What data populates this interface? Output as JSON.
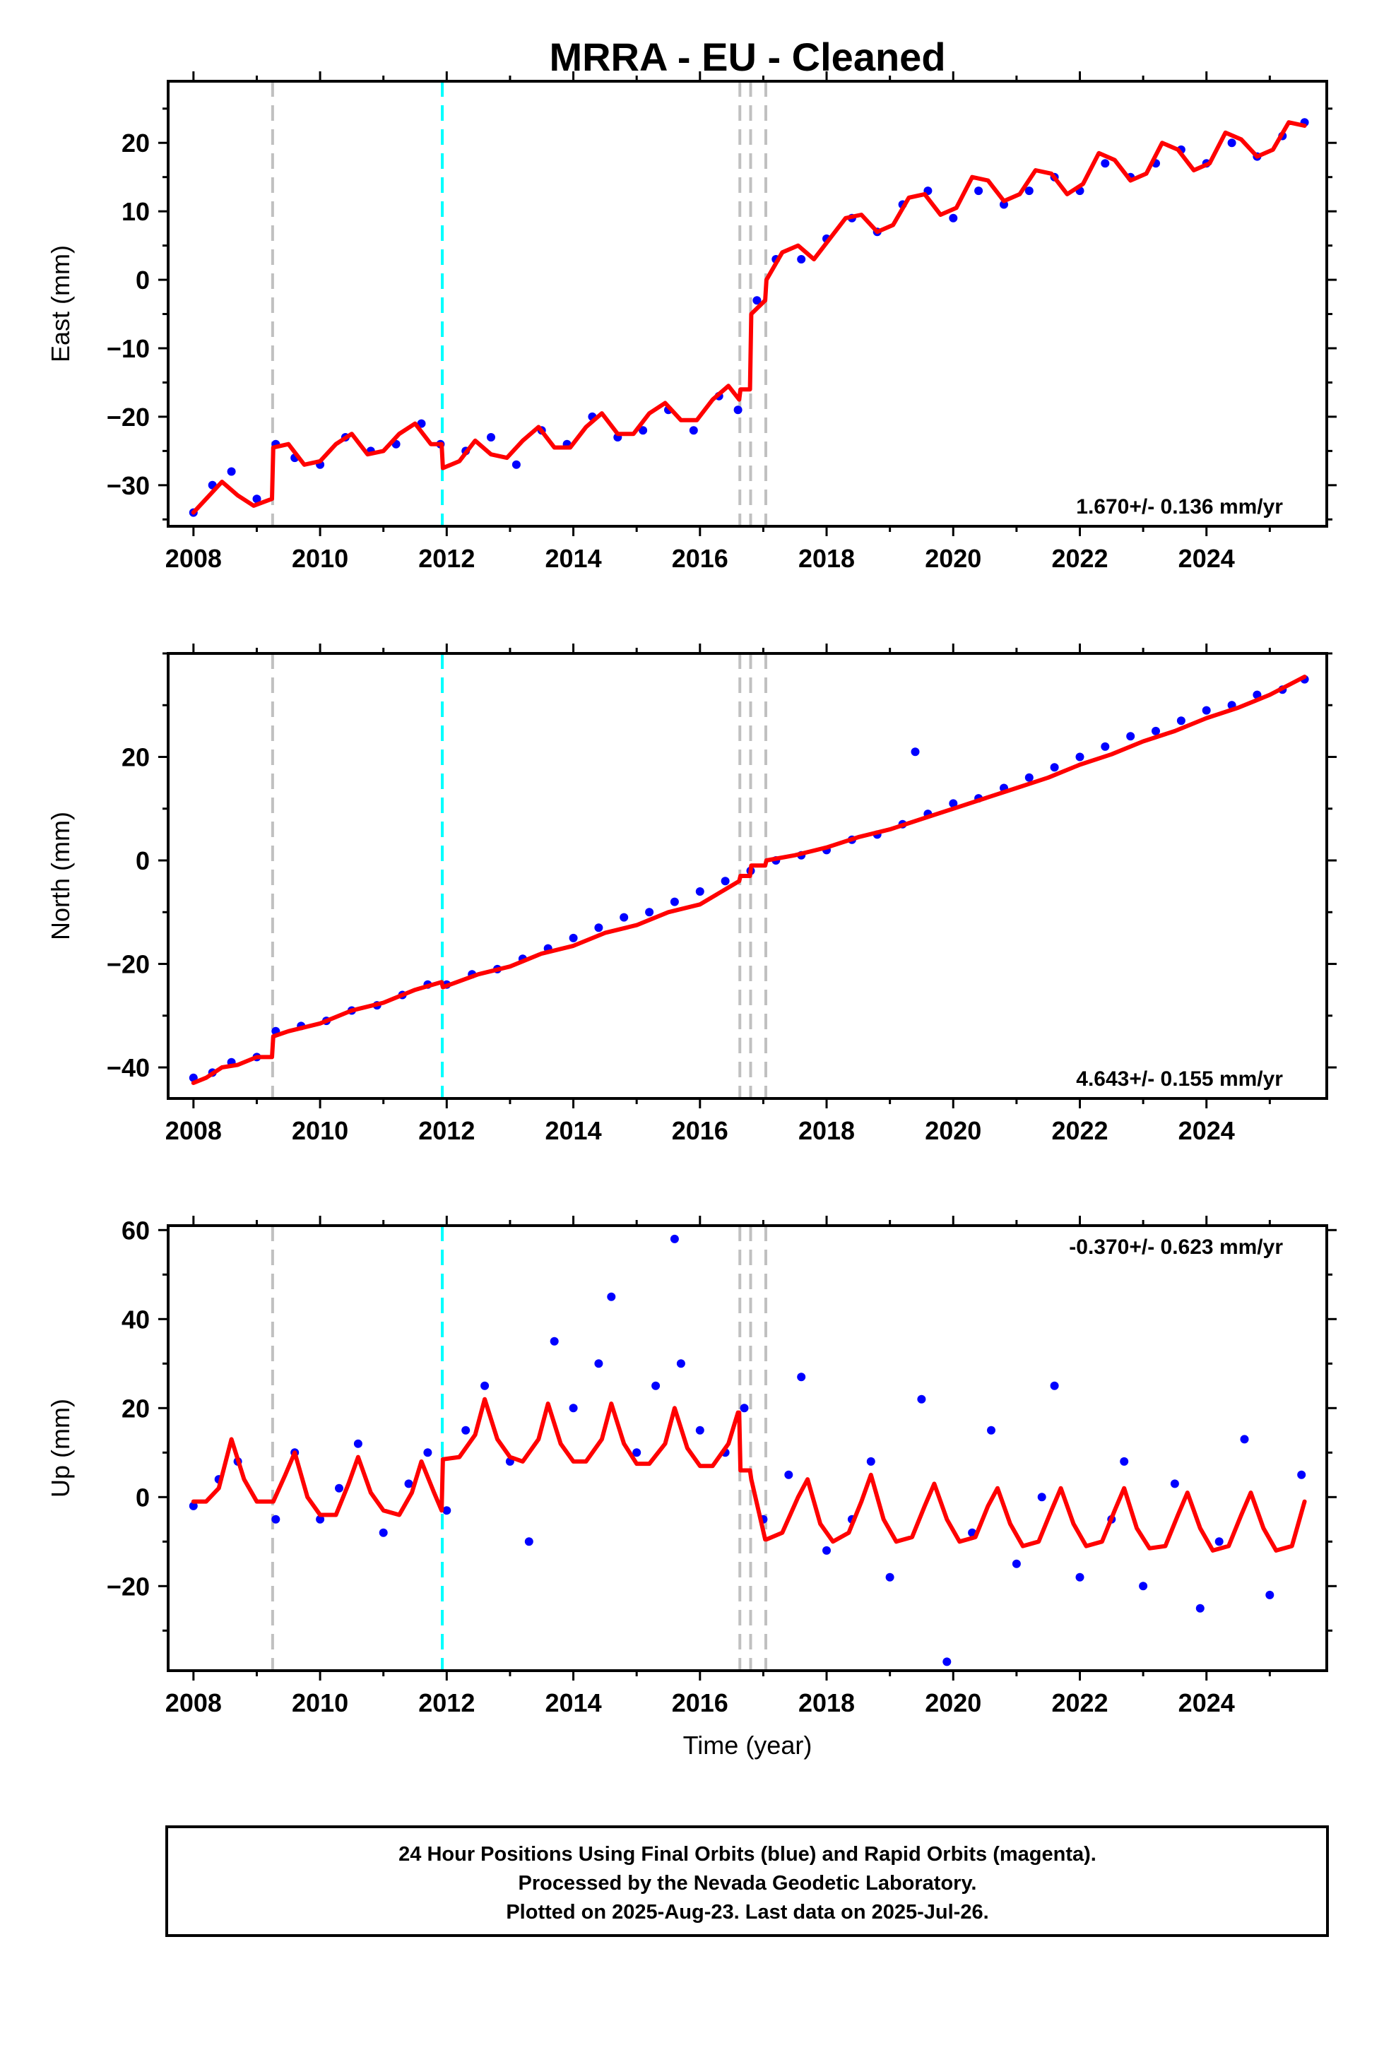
{
  "title": "MRRA  - EU - Cleaned",
  "x_axis_label": "Time (year)",
  "footer": {
    "line1": "24 Hour Positions Using Final Orbits (blue) and Rapid Orbits (magenta).",
    "line2": "Processed by the Nevada Geodetic Laboratory.",
    "line3": "Plotted on 2025-Aug-23. Last data on 2025-Jul-26."
  },
  "colors": {
    "points": "#0000ff",
    "model": "#ff0000",
    "event_gray": "#c0c0c0",
    "event_cyan": "#00ffff"
  },
  "chart_data": [
    {
      "type": "scatter",
      "panel": "east",
      "ylabel": "East (mm)",
      "rate_text": "1.670+/- 0.136 mm/yr",
      "xlim": [
        2007.6,
        2025.9
      ],
      "ylim": [
        -36,
        29
      ],
      "xticks": [
        2008,
        2010,
        2012,
        2014,
        2016,
        2018,
        2020,
        2022,
        2024
      ],
      "yticks": [
        -30,
        -20,
        -10,
        0,
        10,
        20
      ],
      "events": [
        {
          "x": 2009.25,
          "kind": "gray"
        },
        {
          "x": 2011.93,
          "kind": "cyan"
        },
        {
          "x": 2016.63,
          "kind": "gray"
        },
        {
          "x": 2016.8,
          "kind": "gray"
        },
        {
          "x": 2017.04,
          "kind": "gray"
        }
      ],
      "series": [
        {
          "role": "positions",
          "style": "points",
          "x": [
            2008.0,
            2008.3,
            2008.6,
            2009.0,
            2009.3,
            2009.6,
            2010.0,
            2010.4,
            2010.8,
            2011.2,
            2011.6,
            2011.9,
            2012.3,
            2012.7,
            2013.1,
            2013.5,
            2013.9,
            2014.3,
            2014.7,
            2015.1,
            2015.5,
            2015.9,
            2016.3,
            2016.6,
            2016.9,
            2017.2,
            2017.6,
            2018.0,
            2018.4,
            2018.8,
            2019.2,
            2019.6,
            2020.0,
            2020.4,
            2020.8,
            2021.2,
            2021.6,
            2022.0,
            2022.4,
            2022.8,
            2023.2,
            2023.6,
            2024.0,
            2024.4,
            2024.8,
            2025.2,
            2025.55
          ],
          "y": [
            -34,
            -30,
            -28,
            -32,
            -24,
            -26,
            -27,
            -23,
            -25,
            -24,
            -21,
            -24,
            -25,
            -23,
            -27,
            -22,
            -24,
            -20,
            -23,
            -22,
            -19,
            -22,
            -17,
            -19,
            -3,
            3,
            3,
            6,
            9,
            7,
            11,
            13,
            9,
            13,
            11,
            13,
            15,
            13,
            17,
            15,
            17,
            19,
            17,
            20,
            18,
            21,
            23
          ]
        },
        {
          "role": "model",
          "style": "line",
          "x": [
            2008.0,
            2008.2,
            2008.45,
            2008.7,
            2008.95,
            2009.24,
            2009.26,
            2009.5,
            2009.75,
            2010.0,
            2010.25,
            2010.5,
            2010.75,
            2011.0,
            2011.25,
            2011.5,
            2011.75,
            2011.92,
            2011.94,
            2012.2,
            2012.45,
            2012.7,
            2012.95,
            2013.2,
            2013.45,
            2013.7,
            2013.95,
            2014.2,
            2014.45,
            2014.7,
            2014.95,
            2015.2,
            2015.45,
            2015.7,
            2015.95,
            2016.2,
            2016.45,
            2016.62,
            2016.64,
            2016.79,
            2016.81,
            2017.03,
            2017.05,
            2017.3,
            2017.55,
            2017.8,
            2018.05,
            2018.3,
            2018.55,
            2018.8,
            2019.05,
            2019.3,
            2019.55,
            2019.8,
            2020.05,
            2020.3,
            2020.55,
            2020.8,
            2021.05,
            2021.3,
            2021.55,
            2021.8,
            2022.05,
            2022.3,
            2022.55,
            2022.8,
            2023.05,
            2023.3,
            2023.55,
            2023.8,
            2024.05,
            2024.3,
            2024.55,
            2024.8,
            2025.05,
            2025.3,
            2025.55
          ],
          "y": [
            -34,
            -32,
            -29.5,
            -31.5,
            -33,
            -32,
            -24.5,
            -24,
            -27,
            -26.5,
            -24,
            -22.5,
            -25.5,
            -25,
            -22.5,
            -21,
            -24,
            -24,
            -27.5,
            -26.5,
            -23.5,
            -25.5,
            -26,
            -23.5,
            -21.5,
            -24.5,
            -24.5,
            -21.5,
            -19.5,
            -22.5,
            -22.5,
            -19.5,
            -18,
            -20.5,
            -20.5,
            -17.5,
            -15.5,
            -17.5,
            -16,
            -16,
            -5,
            -3,
            0,
            4,
            5,
            3,
            6,
            9,
            9.5,
            7,
            8,
            12,
            12.5,
            9.5,
            10.5,
            15,
            14.5,
            11.5,
            12.5,
            16,
            15.5,
            12.5,
            14,
            18.5,
            17.5,
            14.5,
            15.5,
            20,
            19,
            16,
            17,
            21.5,
            20.5,
            18,
            19,
            23,
            22.5
          ]
        }
      ]
    },
    {
      "type": "scatter",
      "panel": "north",
      "ylabel": "North (mm)",
      "rate_text": "4.643+/- 0.155 mm/yr",
      "xlim": [
        2007.6,
        2025.9
      ],
      "ylim": [
        -46,
        40
      ],
      "xticks": [
        2008,
        2010,
        2012,
        2014,
        2016,
        2018,
        2020,
        2022,
        2024
      ],
      "yticks": [
        -40,
        -20,
        0,
        20
      ],
      "events": [
        {
          "x": 2009.25,
          "kind": "gray"
        },
        {
          "x": 2011.93,
          "kind": "cyan"
        },
        {
          "x": 2016.63,
          "kind": "gray"
        },
        {
          "x": 2016.8,
          "kind": "gray"
        },
        {
          "x": 2017.04,
          "kind": "gray"
        }
      ],
      "series": [
        {
          "role": "positions",
          "style": "points",
          "x": [
            2008.0,
            2008.3,
            2008.6,
            2009.0,
            2009.3,
            2009.7,
            2010.1,
            2010.5,
            2010.9,
            2011.3,
            2011.7,
            2012.0,
            2012.4,
            2012.8,
            2013.2,
            2013.6,
            2014.0,
            2014.4,
            2014.8,
            2015.2,
            2015.6,
            2016.0,
            2016.4,
            2016.8,
            2017.2,
            2017.6,
            2018.0,
            2018.4,
            2018.8,
            2019.2,
            2019.4,
            2019.6,
            2020.0,
            2020.4,
            2020.8,
            2021.2,
            2021.6,
            2022.0,
            2022.4,
            2022.8,
            2023.2,
            2023.6,
            2024.0,
            2024.4,
            2024.8,
            2025.2,
            2025.55
          ],
          "y": [
            -42,
            -41,
            -39,
            -38,
            -33,
            -32,
            -31,
            -29,
            -28,
            -26,
            -24,
            -24,
            -22,
            -21,
            -19,
            -17,
            -15,
            -13,
            -11,
            -10,
            -8,
            -6,
            -4,
            -2,
            0,
            1,
            2,
            4,
            5,
            7,
            21,
            9,
            11,
            12,
            14,
            16,
            18,
            20,
            22,
            24,
            25,
            27,
            29,
            30,
            32,
            33,
            35
          ]
        },
        {
          "role": "model",
          "style": "line",
          "x": [
            2008.0,
            2008.2,
            2008.45,
            2008.7,
            2009.0,
            2009.24,
            2009.26,
            2009.5,
            2010.0,
            2010.5,
            2011.0,
            2011.5,
            2011.92,
            2011.94,
            2012.5,
            2013.0,
            2013.5,
            2014.0,
            2014.5,
            2015.0,
            2015.5,
            2016.0,
            2016.62,
            2016.64,
            2016.79,
            2016.81,
            2017.03,
            2017.05,
            2017.5,
            2018.0,
            2018.5,
            2019.0,
            2019.5,
            2020.0,
            2020.5,
            2021.0,
            2021.5,
            2022.0,
            2022.5,
            2023.0,
            2023.5,
            2024.0,
            2024.5,
            2025.0,
            2025.55
          ],
          "y": [
            -43,
            -42,
            -40,
            -39.5,
            -38,
            -38,
            -34,
            -33,
            -31.5,
            -29,
            -27.5,
            -25,
            -23.5,
            -24.5,
            -22,
            -20.5,
            -18,
            -16.5,
            -14,
            -12.5,
            -10,
            -8.5,
            -4,
            -3,
            -3,
            -1,
            -1,
            0,
            1,
            2.5,
            4.5,
            6,
            8,
            10,
            12,
            14,
            16,
            18.5,
            20.5,
            23,
            25,
            27.5,
            29.5,
            32,
            35.5
          ]
        }
      ]
    },
    {
      "type": "scatter",
      "panel": "up",
      "ylabel": "Up (mm)",
      "rate_text": "-0.370+/- 0.623 mm/yr",
      "xlim": [
        2007.6,
        2025.9
      ],
      "ylim": [
        -39,
        61
      ],
      "xticks": [
        2008,
        2010,
        2012,
        2014,
        2016,
        2018,
        2020,
        2022,
        2024
      ],
      "yticks": [
        -20,
        0,
        20,
        40,
        60
      ],
      "events": [
        {
          "x": 2009.25,
          "kind": "gray"
        },
        {
          "x": 2011.93,
          "kind": "cyan"
        },
        {
          "x": 2016.63,
          "kind": "gray"
        },
        {
          "x": 2016.8,
          "kind": "gray"
        },
        {
          "x": 2017.04,
          "kind": "gray"
        }
      ],
      "series": [
        {
          "role": "positions",
          "style": "points",
          "x": [
            2008.0,
            2008.4,
            2008.7,
            2009.3,
            2009.6,
            2010.0,
            2010.3,
            2010.6,
            2011.0,
            2011.4,
            2011.7,
            2012.0,
            2012.3,
            2012.6,
            2013.0,
            2013.3,
            2013.7,
            2014.0,
            2014.4,
            2014.6,
            2015.0,
            2015.3,
            2015.6,
            2015.7,
            2016.0,
            2016.4,
            2016.7,
            2017.0,
            2017.4,
            2017.6,
            2018.0,
            2018.4,
            2018.7,
            2019.0,
            2019.5,
            2019.9,
            2020.3,
            2020.6,
            2021.0,
            2021.4,
            2021.6,
            2022.0,
            2022.5,
            2022.7,
            2023.0,
            2023.5,
            2023.9,
            2024.2,
            2024.6,
            2025.0,
            2025.5
          ],
          "y": [
            -2,
            4,
            8,
            -5,
            10,
            -5,
            2,
            12,
            -8,
            3,
            10,
            -3,
            15,
            25,
            8,
            -10,
            35,
            20,
            30,
            45,
            10,
            25,
            58,
            30,
            15,
            10,
            20,
            -5,
            5,
            27,
            -12,
            -5,
            8,
            -18,
            22,
            -37,
            -8,
            15,
            -15,
            0,
            25,
            -18,
            -5,
            8,
            -20,
            3,
            -25,
            -10,
            13,
            -22,
            5
          ]
        },
        {
          "role": "model",
          "style": "line",
          "x": [
            2008.0,
            2008.2,
            2008.4,
            2008.6,
            2008.8,
            2009.0,
            2009.24,
            2009.26,
            2009.45,
            2009.6,
            2009.8,
            2010.0,
            2010.25,
            2010.45,
            2010.6,
            2010.8,
            2011.0,
            2011.25,
            2011.45,
            2011.6,
            2011.8,
            2011.92,
            2011.94,
            2012.2,
            2012.45,
            2012.6,
            2012.8,
            2013.0,
            2013.2,
            2013.45,
            2013.6,
            2013.8,
            2014.0,
            2014.2,
            2014.45,
            2014.6,
            2014.8,
            2015.0,
            2015.2,
            2015.45,
            2015.6,
            2015.8,
            2016.0,
            2016.2,
            2016.45,
            2016.6,
            2016.62,
            2016.64,
            2016.79,
            2016.81,
            2017.03,
            2017.05,
            2017.3,
            2017.55,
            2017.7,
            2017.9,
            2018.1,
            2018.35,
            2018.55,
            2018.7,
            2018.9,
            2019.1,
            2019.35,
            2019.55,
            2019.7,
            2019.9,
            2020.1,
            2020.35,
            2020.55,
            2020.7,
            2020.9,
            2021.1,
            2021.35,
            2021.55,
            2021.7,
            2021.9,
            2022.1,
            2022.35,
            2022.55,
            2022.7,
            2022.9,
            2023.1,
            2023.35,
            2023.55,
            2023.7,
            2023.9,
            2024.1,
            2024.35,
            2024.55,
            2024.7,
            2024.9,
            2025.1,
            2025.35,
            2025.55
          ],
          "y": [
            -1,
            -1,
            2,
            13,
            4,
            -1,
            -1,
            -1,
            5,
            10,
            0,
            -4,
            -4,
            3,
            9,
            1,
            -3,
            -4,
            1,
            8,
            1,
            -3,
            8.5,
            9,
            14,
            22,
            13,
            9,
            8,
            13,
            21,
            12,
            8,
            8,
            13,
            21,
            12,
            7.5,
            7.5,
            12,
            20,
            11,
            7,
            7,
            12,
            19,
            19,
            6,
            6,
            4,
            -9.5,
            -9.5,
            -8,
            0,
            4,
            -6,
            -10,
            -8,
            -1,
            5,
            -5,
            -10,
            -9,
            -2,
            3,
            -5,
            -10,
            -9,
            -2,
            2,
            -6,
            -11,
            -10,
            -3,
            2,
            -6,
            -11,
            -10,
            -3,
            2,
            -7,
            -11.5,
            -11,
            -4,
            1,
            -7,
            -12,
            -11,
            -4,
            1,
            -7,
            -12,
            -11,
            -1
          ]
        }
      ]
    }
  ]
}
